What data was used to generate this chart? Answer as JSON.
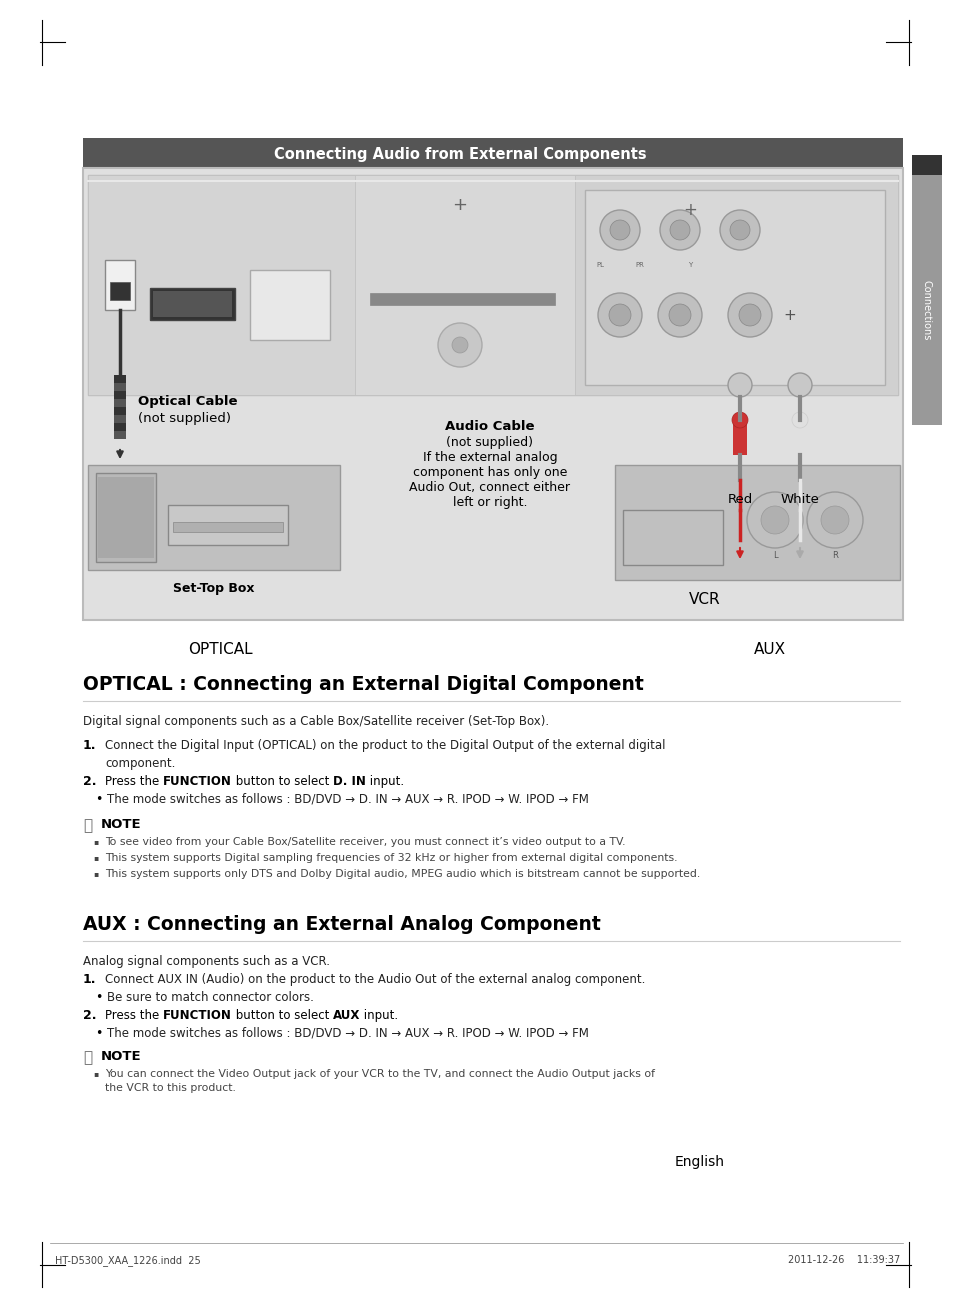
{
  "page_bg": "#ffffff",
  "header_bar_color": "#555555",
  "header_text": "Connecting Audio from External Components",
  "header_text_color": "#ffffff",
  "side_tab_bg": "#999999",
  "side_tab_dark": "#333333",
  "diagram_outer_bg": "#e0e0e0",
  "diagram_outer_border": "#bbbbbb",
  "device_panel_bg": "#d4d4d4",
  "device_panel_border": "#b0b0b0",
  "left_panel_bg": "#d8d8d8",
  "right_panel_bg": "#d0d0d0",
  "hdmi_color": "#444444",
  "optical_port_color": "#444444",
  "cable_dark": "#333333",
  "cable_red": "#cc2222",
  "cable_white": "#e8e8e8",
  "stb_bg": "#c0c0c0",
  "vcr_bg": "#c0c0c0",
  "section_rule_color": "#cccccc",
  "note_icon_color": "#666666",
  "bullet_color": "#000000",
  "text_color": "#222222",
  "note_text_color": "#444444",
  "footer_color": "#444444",
  "crop_color": "#000000",
  "optical_label": "OPTICAL",
  "aux_label": "AUX",
  "set_top_box_label": "Set-Top Box",
  "vcr_label": "VCR",
  "red_label": "Red",
  "white_label": "White",
  "optical_cable_line1": "Optical Cable",
  "optical_cable_line2": "(not supplied)",
  "audio_cable_line1": "Audio Cable",
  "audio_cable_line2": "(not supplied)",
  "audio_cable_line3": "If the external analog",
  "audio_cable_line4": "component has only one",
  "audio_cable_line5": "Audio Out, connect either",
  "audio_cable_line6": "left or right.",
  "section1_title": "OPTICAL : Connecting an External Digital Component",
  "section1_intro": "Digital signal components such as a Cable Box/Satellite receiver (Set-Top Box).",
  "section1_step1": "Connect the Digital Input (OPTICAL) on the product to the Digital Output of the external digital\ncomponent.",
  "section1_step2a": "Press the ",
  "section1_step2b": "FUNCTION",
  "section1_step2c": " button to select ",
  "section1_step2d": "D. IN",
  "section1_step2e": " input.",
  "section1_bullet": "The mode switches as follows : BD/DVD → D. IN → AUX → R. IPOD → W. IPOD → FM",
  "section1_note_title": "NOTE",
  "section1_notes": [
    "To see video from your Cable Box/Satellite receiver, you must connect it’s video output to a TV.",
    "This system supports Digital sampling frequencies of 32 kHz or higher from external digital components.",
    "This system supports only DTS and Dolby Digital audio, MPEG audio which is bitstream cannot be supported."
  ],
  "section2_title": "AUX : Connecting an External Analog Component",
  "section2_intro": "Analog signal components such as a VCR.",
  "section2_step1": "Connect AUX IN (Audio) on the product to the Audio Out of the external analog component.",
  "section2_step1_bullet": "Be sure to match connector colors.",
  "section2_step2a": "Press the ",
  "section2_step2b": "FUNCTION",
  "section2_step2c": " button to select ",
  "section2_step2d": "AUX",
  "section2_step2e": " input.",
  "section2_bullet": "The mode switches as follows : BD/DVD → D. IN → AUX → R. IPOD → W. IPOD → FM",
  "section2_note_title": "NOTE",
  "section2_notes": [
    "You can connect the Video Output jack of your VCR to the TV, and connect the Audio Output jacks of\nthe VCR to this product."
  ],
  "footer_english": "English",
  "footer_file": "HT-D5300_XAA_1226.indd  25",
  "footer_date": "2011-12-26    11:39:37"
}
